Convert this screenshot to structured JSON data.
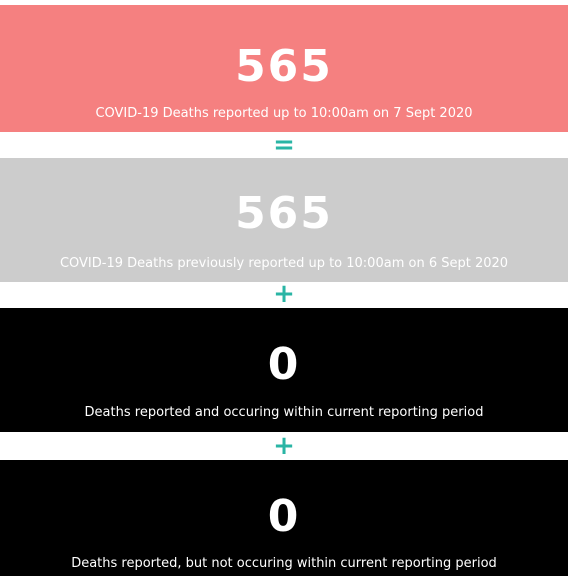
{
  "cards": [
    {
      "value": 565,
      "caption": "COVID-19 Deaths reported up to 10:00am on 7 Sept 2020"
    },
    {
      "value": 565,
      "caption": "COVID-19 Deaths previously reported up to 10:00am on 6 Sept 2020"
    },
    {
      "value": 0,
      "caption": "Deaths reported and occuring within current reporting period"
    },
    {
      "value": 0,
      "caption": "Deaths reported, but not occuring within current reporting period"
    }
  ],
  "operators": [
    "=",
    "+",
    "+"
  ]
}
